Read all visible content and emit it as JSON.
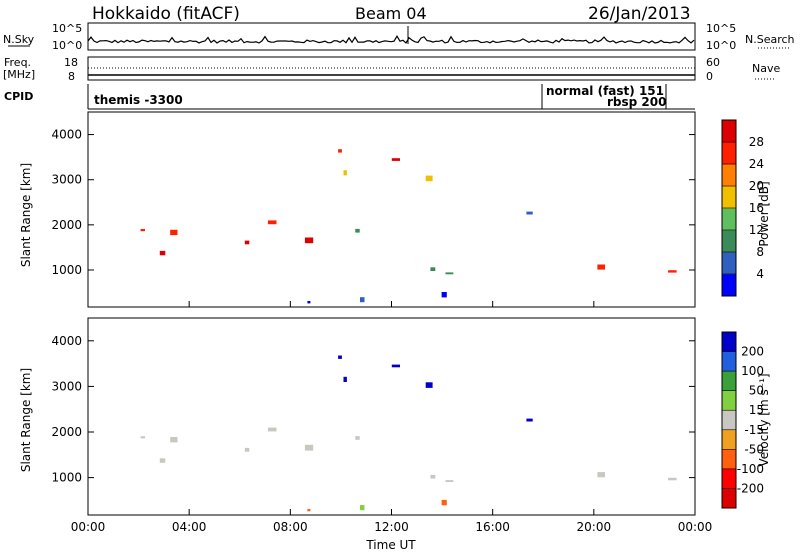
{
  "header": {
    "station": "Hokkaido (fitACF)",
    "beam": "Beam 04",
    "date": "26/Jan/2013"
  },
  "params": {
    "nsky_label": "N.Sky",
    "nsearch_label": "N.Search",
    "freq_label_1": "Freq.",
    "freq_label_2": "[MHz]",
    "nave_label": "Nave",
    "cpid_label": "CPID",
    "left_ticks_top": [
      "10^5",
      "10^0"
    ],
    "right_ticks_top": [
      "10^5",
      "10^0"
    ],
    "freq_ticks": [
      "18",
      "8"
    ],
    "nave_ticks": [
      "60",
      "0"
    ],
    "cpid_entries": [
      "themis -3300",
      "normal (fast) 151",
      "rbsp 200"
    ]
  },
  "chart_data": [
    {
      "type": "heatmap",
      "name": "power",
      "ylabel": "Slant Range [km]",
      "ylim": [
        180,
        4500
      ],
      "yticks": [
        "1000",
        "2000",
        "3000",
        "4000"
      ],
      "xticks": [
        "00:00",
        "04:00",
        "08:00",
        "12:00",
        "16:00",
        "20:00",
        "00:00"
      ],
      "xlim_hours": [
        0,
        24
      ],
      "colorbar": {
        "label": "Power [dB]",
        "ticks": [
          "4",
          "8",
          "12",
          "16",
          "20",
          "24",
          "28"
        ],
        "colors": [
          "#0000ff",
          "#2f5fbf",
          "#3a8a5a",
          "#5fbf5f",
          "#f0c000",
          "#ff8000",
          "#ff2000",
          "#dd0000"
        ]
      }
    },
    {
      "type": "heatmap",
      "name": "velocity",
      "ylabel": "Slant Range [km]",
      "ylim": [
        180,
        4500
      ],
      "yticks": [
        "1000",
        "2000",
        "3000",
        "4000"
      ],
      "xticks": [
        "00:00",
        "04:00",
        "08:00",
        "12:00",
        "16:00",
        "20:00",
        "00:00"
      ],
      "xlabel": "Time UT",
      "colorbar": {
        "label": "Velocity [m s⁻¹]",
        "ticks": [
          "200",
          "100",
          "50",
          "15",
          "-15",
          "-50",
          "-100",
          "-200"
        ],
        "colors": [
          "#0000c8",
          "#2060e0",
          "#3aa03a",
          "#80d040",
          "#c8c8c0",
          "#f0a020",
          "#ff6010",
          "#ff0000",
          "#dd0000"
        ]
      }
    }
  ]
}
